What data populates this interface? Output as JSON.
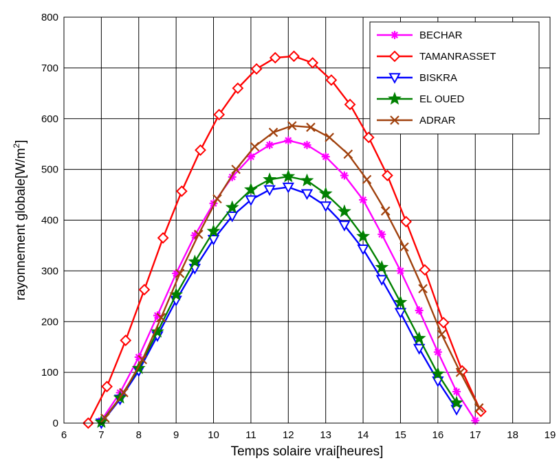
{
  "chart_data": {
    "type": "line",
    "xlabel": "Temps solaire vrai[heures]",
    "ylabel": "rayonnement globale[W/m",
    "ylabel_sup": "2",
    "ylabel_end": "]",
    "xlim": [
      6,
      19
    ],
    "ylim": [
      0,
      800
    ],
    "xticks": [
      6,
      7,
      8,
      9,
      10,
      11,
      12,
      13,
      14,
      15,
      16,
      17,
      18,
      19
    ],
    "yticks": [
      0,
      100,
      200,
      300,
      400,
      500,
      600,
      700,
      800
    ],
    "grid": true,
    "legend_position": "top-right",
    "series": [
      {
        "name": "BECHAR",
        "color": "#ff00ff",
        "marker": "asterisk",
        "x": [
          7.0,
          7.5,
          8.0,
          8.5,
          9.0,
          9.5,
          10.0,
          10.5,
          11.0,
          11.5,
          12.0,
          12.5,
          13.0,
          13.5,
          14.0,
          14.5,
          15.0,
          15.5,
          16.0,
          16.5,
          17.0
        ],
        "y": [
          5,
          60,
          130,
          212,
          295,
          370,
          433,
          485,
          525,
          548,
          557,
          548,
          525,
          488,
          440,
          372,
          300,
          222,
          140,
          62,
          5
        ]
      },
      {
        "name": "TAMANRASSET",
        "color": "#ff0000",
        "marker": "diamond",
        "x": [
          6.65,
          7.15,
          7.65,
          8.15,
          8.65,
          9.15,
          9.65,
          10.15,
          10.65,
          11.15,
          11.65,
          12.15,
          12.65,
          13.15,
          13.65,
          14.15,
          14.65,
          15.15,
          15.65,
          16.15,
          16.65,
          17.15
        ],
        "y": [
          0,
          72,
          163,
          263,
          365,
          457,
          538,
          608,
          660,
          698,
          720,
          723,
          710,
          676,
          628,
          563,
          488,
          397,
          302,
          198,
          103,
          23
        ]
      },
      {
        "name": "BISKRA",
        "color": "#0000ff",
        "marker": "triangle-down",
        "x": [
          7.0,
          7.5,
          8.0,
          8.5,
          9.0,
          9.5,
          10.0,
          10.5,
          11.0,
          11.5,
          12.0,
          12.5,
          13.0,
          13.5,
          14.0,
          14.5,
          15.0,
          15.5,
          16.0,
          16.5
        ],
        "y": [
          0,
          47,
          103,
          172,
          242,
          305,
          362,
          408,
          440,
          460,
          465,
          452,
          428,
          390,
          343,
          283,
          218,
          147,
          83,
          27
        ]
      },
      {
        "name": "EL OUED",
        "color": "#008000",
        "marker": "star",
        "x": [
          7.0,
          7.5,
          8.0,
          8.5,
          9.0,
          9.5,
          10.0,
          10.5,
          11.0,
          11.5,
          12.0,
          12.5,
          13.0,
          13.5,
          14.0,
          14.5,
          15.0,
          15.5,
          16.0,
          16.5
        ],
        "y": [
          2,
          50,
          108,
          180,
          253,
          318,
          378,
          425,
          460,
          480,
          486,
          478,
          452,
          417,
          368,
          307,
          238,
          167,
          97,
          40
        ]
      },
      {
        "name": "ADRAR",
        "color": "#a0410d",
        "marker": "x",
        "x": [
          7.1,
          7.6,
          8.1,
          8.6,
          9.1,
          9.6,
          10.1,
          10.6,
          11.1,
          11.6,
          12.1,
          12.6,
          13.1,
          13.6,
          14.1,
          14.6,
          15.1,
          15.6,
          16.1,
          16.6,
          17.1
        ],
        "y": [
          10,
          60,
          125,
          208,
          295,
          372,
          442,
          500,
          545,
          573,
          586,
          583,
          563,
          530,
          480,
          418,
          347,
          265,
          175,
          100,
          30
        ]
      }
    ]
  }
}
